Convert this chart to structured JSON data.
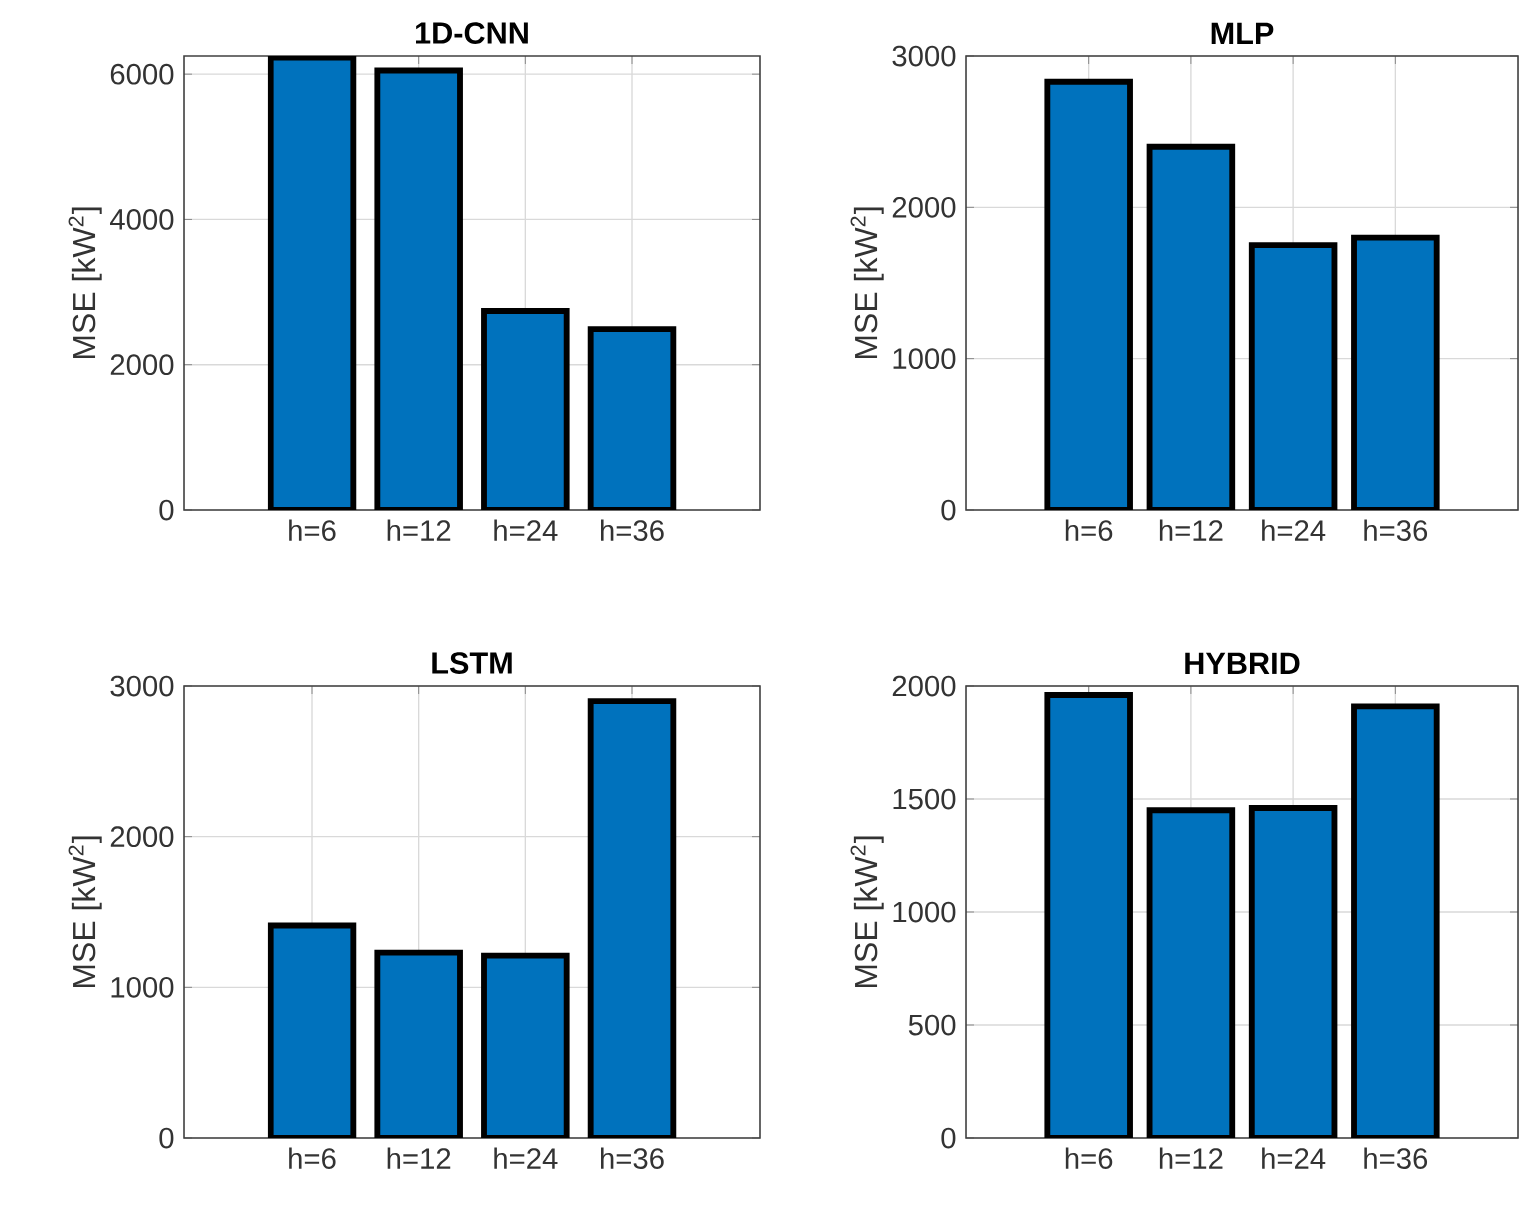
{
  "chart_data": [
    {
      "type": "bar",
      "title": "1D-CNN",
      "ylabel": "MSE [kW$^{2}$]",
      "categories": [
        "h=6",
        "h=12",
        "h=24",
        "h=36"
      ],
      "values": [
        6230,
        6050,
        2740,
        2490
      ],
      "color": "#0072bd",
      "ylim": [
        0,
        6250
      ],
      "yticks": [
        0,
        2000,
        4000,
        6000
      ],
      "grid": true
    },
    {
      "type": "bar",
      "title": "MLP",
      "ylabel": "MSE [kW$^{2}$]",
      "categories": [
        "h=6",
        "h=12",
        "h=24",
        "h=36"
      ],
      "values": [
        2830,
        2400,
        1750,
        1800
      ],
      "color": "#0072bd",
      "ylim": [
        0,
        3000
      ],
      "yticks": [
        0,
        1000,
        2000,
        3000
      ],
      "grid": true
    },
    {
      "type": "bar",
      "title": "LSTM",
      "ylabel": "MSE [kW$^{2}$]",
      "categories": [
        "h=6",
        "h=12",
        "h=24",
        "h=36"
      ],
      "values": [
        1410,
        1230,
        1210,
        2900
      ],
      "color": "#0072bd",
      "ylim": [
        0,
        3000
      ],
      "yticks": [
        0,
        1000,
        2000,
        3000
      ],
      "grid": true
    },
    {
      "type": "bar",
      "title": "HYBRID",
      "ylabel": "MSE [kW$^{2}$]",
      "categories": [
        "h=6",
        "h=12",
        "h=24",
        "h=36"
      ],
      "values": [
        1960,
        1450,
        1460,
        1910
      ],
      "color": "#0072bd",
      "ylim": [
        0,
        2000
      ],
      "yticks": [
        0,
        500,
        1000,
        1500,
        2000
      ],
      "grid": true
    }
  ]
}
